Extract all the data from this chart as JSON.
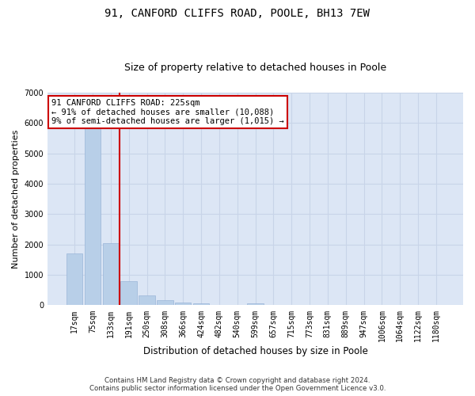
{
  "title1": "91, CANFORD CLIFFS ROAD, POOLE, BH13 7EW",
  "title2": "Size of property relative to detached houses in Poole",
  "xlabel": "Distribution of detached houses by size in Poole",
  "ylabel": "Number of detached properties",
  "bin_labels": [
    "17sqm",
    "75sqm",
    "133sqm",
    "191sqm",
    "250sqm",
    "308sqm",
    "366sqm",
    "424sqm",
    "482sqm",
    "540sqm",
    "599sqm",
    "657sqm",
    "715sqm",
    "773sqm",
    "831sqm",
    "889sqm",
    "947sqm",
    "1006sqm",
    "1064sqm",
    "1122sqm",
    "1180sqm"
  ],
  "bar_values": [
    1700,
    5900,
    2050,
    800,
    320,
    170,
    100,
    60,
    0,
    0,
    60,
    0,
    0,
    0,
    0,
    0,
    0,
    0,
    0,
    0,
    0
  ],
  "bar_color": "#b8cfe8",
  "bar_edge_color": "#9ab5d8",
  "grid_color": "#c8d4e8",
  "background_color": "#dce6f5",
  "vline_x_index": 2.5,
  "vline_color": "#cc0000",
  "annotation_box_text": "91 CANFORD CLIFFS ROAD: 225sqm\n← 91% of detached houses are smaller (10,088)\n9% of semi-detached houses are larger (1,015) →",
  "annotation_box_color": "#cc0000",
  "annotation_box_bg": "#ffffff",
  "ylim": [
    0,
    7000
  ],
  "yticks": [
    0,
    1000,
    2000,
    3000,
    4000,
    5000,
    6000,
    7000
  ],
  "footnote": "Contains HM Land Registry data © Crown copyright and database right 2024.\nContains public sector information licensed under the Open Government Licence v3.0.",
  "title1_fontsize": 10,
  "title2_fontsize": 9,
  "xlabel_fontsize": 8.5,
  "ylabel_fontsize": 8,
  "tick_fontsize": 7,
  "annot_fontsize": 7.5
}
